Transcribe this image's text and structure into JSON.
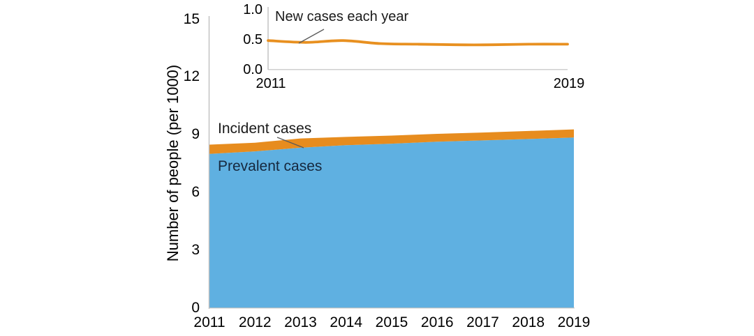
{
  "figure": {
    "background": "#FFFFFF",
    "colors": {
      "prevalent_fill": "#5FB0E1",
      "incident_fill": "#E78C1E",
      "inset_line": "#E89020",
      "axis_line": "#BFBFBF",
      "leader_line": "#5A5A5A",
      "tick_label": "#000000",
      "incident_label": "#1A1A1A",
      "prevalent_label": "#16283E"
    }
  },
  "main_chart": {
    "y_axis_title": "Number of people (per 1000)",
    "incident_label": "Incident cases",
    "prevalent_label": "Prevalent cases",
    "y_ticks": [
      0,
      3,
      6,
      9,
      12,
      15
    ],
    "x_tick_labels": [
      "2011",
      "2012",
      "2013",
      "2014",
      "2015",
      "2016",
      "2017",
      "2018",
      "2019"
    ]
  },
  "inset_chart": {
    "annotation": "New cases each year",
    "y_ticks": [
      {
        "value": 1.0,
        "label": "1.0"
      },
      {
        "value": 0.5,
        "label": "0.5"
      },
      {
        "value": 0.0,
        "label": "0.0"
      }
    ],
    "x_tick_labels": [
      "2011",
      "2019"
    ]
  },
  "chart_data": [
    {
      "id": "main",
      "type": "area",
      "stacked": true,
      "title": "",
      "xlabel": "",
      "ylabel": "Number of people (per 1000)",
      "x": [
        2011,
        2012,
        2013,
        2014,
        2015,
        2016,
        2017,
        2018,
        2019
      ],
      "series": [
        {
          "name": "Prevalent cases",
          "color": "#5FB0E1",
          "values": [
            8.0,
            8.13,
            8.32,
            8.45,
            8.53,
            8.63,
            8.7,
            8.77,
            8.85
          ]
        },
        {
          "name": "Incident cases",
          "color": "#E78C1E",
          "values": [
            0.48,
            0.45,
            0.48,
            0.43,
            0.42,
            0.41,
            0.41,
            0.42,
            0.42
          ]
        }
      ],
      "ylim": [
        0,
        15
      ],
      "y_ticks": [
        0,
        3,
        6,
        9,
        12,
        15
      ],
      "grid": false,
      "legend": "inline-annotations"
    },
    {
      "id": "inset",
      "type": "line",
      "title": "New cases each year",
      "xlabel": "",
      "ylabel": "",
      "x": [
        2011,
        2012,
        2013,
        2014,
        2015,
        2016,
        2017,
        2018,
        2019
      ],
      "series": [
        {
          "name": "New cases each year",
          "color": "#E89020",
          "values": [
            0.48,
            0.45,
            0.48,
            0.43,
            0.42,
            0.41,
            0.41,
            0.42,
            0.42
          ]
        }
      ],
      "ylim": [
        0,
        1
      ],
      "y_ticks": [
        0.0,
        0.5,
        1.0
      ],
      "x_shown_ticks": [
        2011,
        2019
      ],
      "grid": false,
      "legend": "inline-annotation"
    }
  ]
}
